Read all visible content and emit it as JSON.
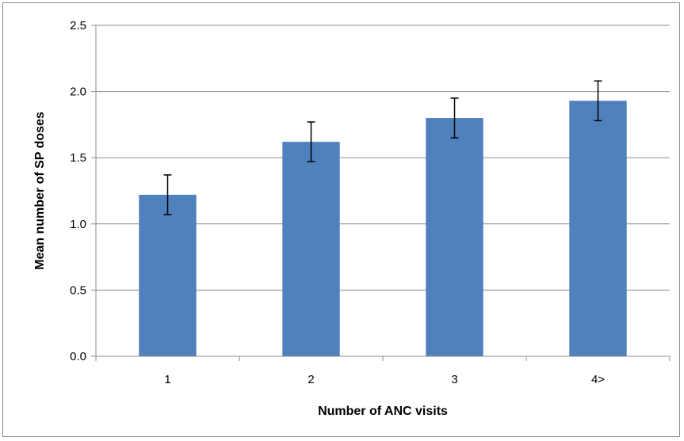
{
  "chart_data": {
    "type": "bar",
    "title": "",
    "xlabel": "Number of ANC visits",
    "ylabel": "Mean number of SP doses",
    "categories": [
      "1",
      "2",
      "3",
      "4>"
    ],
    "values": [
      1.22,
      1.62,
      1.8,
      1.93
    ],
    "error_low": [
      1.07,
      1.47,
      1.65,
      1.78
    ],
    "error_high": [
      1.37,
      1.77,
      1.95,
      2.08
    ],
    "ylim": [
      0,
      2.5
    ],
    "yticks": [
      0,
      0.5,
      1.0,
      1.5,
      2.0,
      2.5
    ],
    "ytick_labels": [
      "0.0",
      "0.5",
      "1.0",
      "1.5",
      "2.0",
      "2.5"
    ],
    "grid": true,
    "legend": "none",
    "bar_color": "#4f81bd",
    "gridline_color": "#8c8c8c"
  }
}
